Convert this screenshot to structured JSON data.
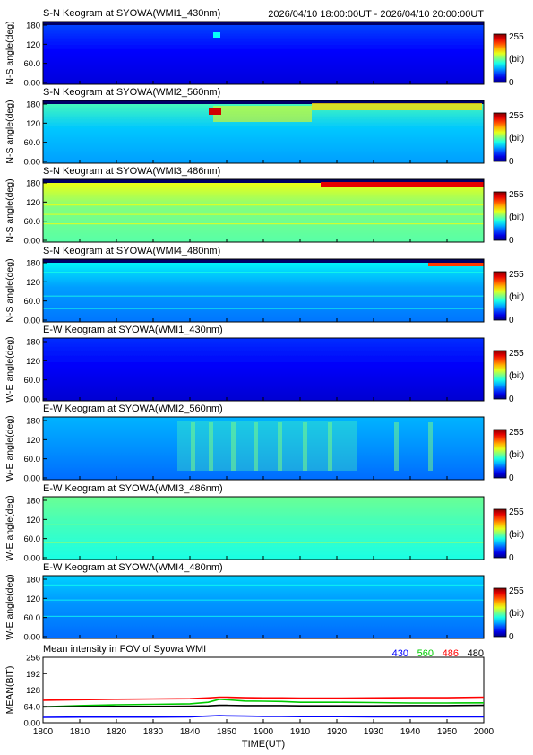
{
  "header": {
    "time_range": "2026/04/10 18:00:00UT - 2026/04/10 20:00:00UT"
  },
  "panels": [
    {
      "title": "S-N Keogram at SYOWA(WMI1_430nm)",
      "ylabel": "N-S angle(deg)",
      "kind": "ns430"
    },
    {
      "title": "S-N Keogram at SYOWA(WMI2_560nm)",
      "ylabel": "N-S angle(deg)",
      "kind": "ns560"
    },
    {
      "title": "S-N Keogram at SYOWA(WMI3_486nm)",
      "ylabel": "N-S angle(deg)",
      "kind": "ns486"
    },
    {
      "title": "S-N Keogram at SYOWA(WMI4_480nm)",
      "ylabel": "N-S angle(deg)",
      "kind": "ns480"
    },
    {
      "title": "E-W Keogram at SYOWA(WMI1_430nm)",
      "ylabel": "W-E angle(deg)",
      "kind": "ew430"
    },
    {
      "title": "E-W Keogram at SYOWA(WMI2_560nm)",
      "ylabel": "W-E angle(deg)",
      "kind": "ew560"
    },
    {
      "title": "E-W Keogram at SYOWA(WMI3_486nm)",
      "ylabel": "W-E angle(deg)",
      "kind": "ew486"
    },
    {
      "title": "E-W Keogram at SYOWA(WMI4_480nm)",
      "ylabel": "W-E angle(deg)",
      "kind": "ew480"
    }
  ],
  "keogram_yticks": [
    "0.00",
    "60.0",
    "120",
    "180"
  ],
  "colorbar": {
    "max_label": "255",
    "unit_label": "(bit)",
    "min_label": "0"
  },
  "colors": {
    "c430": "#0000ff",
    "c560": "#00cc00",
    "c486": "#ff0000",
    "c480": "#000000"
  },
  "chart_data": {
    "type": "line",
    "title": "Mean intensity in FOV of Syowa WMI",
    "xlabel": "TIME(UT)",
    "ylabel": "MEAN(BIT)",
    "x_ticks": [
      "1800",
      "1810",
      "1820",
      "1830",
      "1840",
      "1850",
      "1900",
      "1910",
      "1920",
      "1930",
      "1940",
      "1950",
      "2000"
    ],
    "y_ticks": [
      "0.00",
      "64.0",
      "128",
      "192",
      "256"
    ],
    "ylim": [
      0,
      256
    ],
    "x_minutes": [
      0,
      10,
      20,
      30,
      40,
      45,
      48,
      50,
      55,
      60,
      65,
      70,
      80,
      90,
      100,
      110,
      120
    ],
    "series": [
      {
        "name": "430",
        "color": "#0000ff",
        "values": [
          21,
          22,
          22,
          22,
          23,
          26,
          28,
          27,
          26,
          25,
          25,
          24,
          24,
          23,
          23,
          23,
          23
        ]
      },
      {
        "name": "560",
        "color": "#00cc00",
        "values": [
          62,
          67,
          70,
          72,
          74,
          80,
          92,
          90,
          85,
          84,
          83,
          80,
          80,
          79,
          77,
          77,
          78
        ]
      },
      {
        "name": "486",
        "color": "#ff0000",
        "values": [
          88,
          90,
          92,
          93,
          94,
          97,
          100,
          100,
          98,
          97,
          97,
          96,
          96,
          97,
          98,
          98,
          100
        ]
      },
      {
        "name": "480",
        "color": "#000000",
        "values": [
          62,
          63,
          64,
          64,
          65,
          66,
          68,
          68,
          67,
          67,
          67,
          66,
          66,
          66,
          67,
          67,
          68
        ]
      }
    ]
  }
}
